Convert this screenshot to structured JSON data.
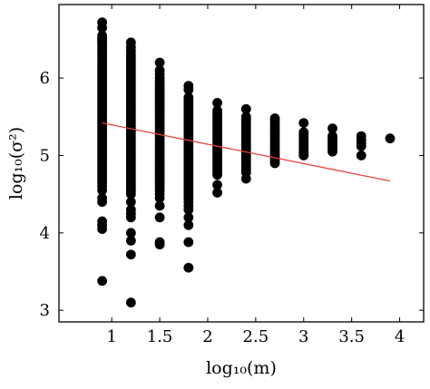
{
  "chart_data": {
    "type": "scatter",
    "xlabel": "log₁₀(m)",
    "ylabel": "log₁₀(σ²)",
    "xlim": [
      0.45,
      4.25
    ],
    "ylim": [
      2.85,
      6.95
    ],
    "xticks": [
      1,
      1.5,
      2,
      2.5,
      3,
      3.5,
      4
    ],
    "xtick_labels": [
      "1",
      "1.5",
      "2",
      "2.5",
      "3",
      "3.5",
      "4"
    ],
    "yticks": [
      3,
      4,
      5,
      6
    ],
    "ytick_labels": [
      "3",
      "4",
      "5",
      "6"
    ],
    "grid": false,
    "colors": {
      "points": "#000000",
      "fit_line": "#e8413c",
      "axes": "#000000"
    },
    "columns": [
      {
        "x": 0.9,
        "dense_range": [
          4.65,
          6.55
        ],
        "y": [
          6.72,
          6.65,
          6.5,
          6.45,
          4.6,
          4.55,
          4.45,
          4.4,
          4.15,
          4.1,
          4.05,
          3.38
        ]
      },
      {
        "x": 1.2,
        "dense_range": [
          4.5,
          6.3
        ],
        "y": [
          6.46,
          6.4,
          6.35,
          4.4,
          4.3,
          4.25,
          4.2,
          4.0,
          3.9,
          3.72,
          3.1
        ]
      },
      {
        "x": 1.5,
        "dense_range": [
          4.55,
          6.0
        ],
        "y": [
          6.2,
          6.1,
          6.05,
          4.5,
          4.45,
          4.35,
          4.2,
          3.88,
          3.85
        ]
      },
      {
        "x": 1.8,
        "dense_range": [
          4.4,
          5.75
        ],
        "y": [
          5.9,
          5.85,
          4.35,
          4.3,
          4.2,
          4.1,
          3.88,
          3.55
        ]
      },
      {
        "x": 2.1,
        "dense_range": [
          4.75,
          5.58
        ],
        "y": [
          5.68,
          4.62,
          4.52
        ]
      },
      {
        "x": 2.4,
        "dense_range": [
          4.78,
          5.5
        ],
        "y": [
          5.6,
          4.7
        ]
      },
      {
        "x": 2.7,
        "dense_range": [
          4.9,
          5.45
        ],
        "y": [
          5.48
        ]
      },
      {
        "x": 3.0,
        "dense_range": [
          5.0,
          5.3
        ],
        "y": [
          5.42
        ]
      },
      {
        "x": 3.3,
        "dense_range": [
          5.05,
          5.25
        ],
        "y": [
          5.35
        ]
      },
      {
        "x": 3.6,
        "dense_range": [
          5.12,
          5.2
        ],
        "y": [
          5.0,
          5.25
        ]
      },
      {
        "x": 3.9,
        "dense_range": null,
        "y": [
          5.22
        ]
      }
    ],
    "fit_line": {
      "x": [
        0.9,
        3.9
      ],
      "y": [
        5.42,
        4.67
      ]
    }
  }
}
